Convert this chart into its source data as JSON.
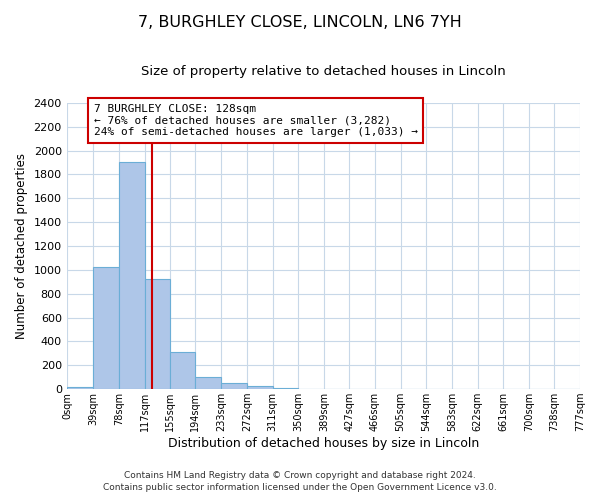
{
  "title": "7, BURGHLEY CLOSE, LINCOLN, LN6 7YH",
  "subtitle": "Size of property relative to detached houses in Lincoln",
  "xlabel": "Distribution of detached houses by size in Lincoln",
  "ylabel": "Number of detached properties",
  "bin_edges": [
    0,
    39,
    78,
    117,
    155,
    194,
    233,
    272,
    311,
    350,
    389,
    427,
    466,
    505,
    544,
    583,
    622,
    661,
    700,
    738,
    777
  ],
  "bar_heights": [
    20,
    1020,
    1900,
    920,
    310,
    105,
    50,
    25,
    10,
    5,
    2,
    0,
    0,
    0,
    0,
    0,
    0,
    0,
    0,
    0
  ],
  "bar_color": "#aec6e8",
  "bar_edgecolor": "#6baed6",
  "bar_linewidth": 0.8,
  "property_size": 128,
  "red_line_color": "#cc0000",
  "annotation_box_edgecolor": "#cc0000",
  "annotation_text_line1": "7 BURGHLEY CLOSE: 128sqm",
  "annotation_text_line2": "← 76% of detached houses are smaller (3,282)",
  "annotation_text_line3": "24% of semi-detached houses are larger (1,033) →",
  "ylim": [
    0,
    2400
  ],
  "yticks": [
    0,
    200,
    400,
    600,
    800,
    1000,
    1200,
    1400,
    1600,
    1800,
    2000,
    2200,
    2400
  ],
  "tick_labels": [
    "0sqm",
    "39sqm",
    "78sqm",
    "117sqm",
    "155sqm",
    "194sqm",
    "233sqm",
    "272sqm",
    "311sqm",
    "350sqm",
    "389sqm",
    "427sqm",
    "466sqm",
    "505sqm",
    "544sqm",
    "583sqm",
    "622sqm",
    "661sqm",
    "700sqm",
    "738sqm",
    "777sqm"
  ],
  "footer_line1": "Contains HM Land Registry data © Crown copyright and database right 2024.",
  "footer_line2": "Contains public sector information licensed under the Open Government Licence v3.0.",
  "background_color": "#ffffff",
  "grid_color": "#c8d8e8",
  "title_fontsize": 11.5,
  "subtitle_fontsize": 9.5,
  "footer_fontsize": 6.5
}
